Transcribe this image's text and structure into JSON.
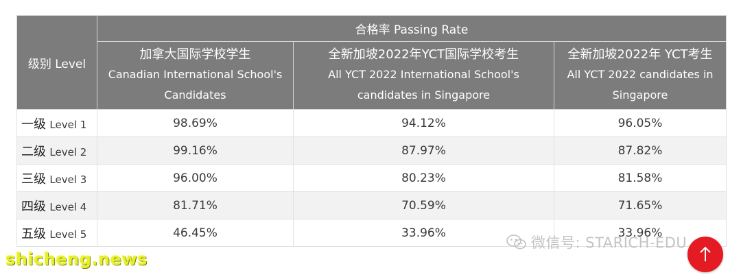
{
  "table": {
    "group_header": "合格率 Passing Rate",
    "level_header": "级别 Level",
    "columns": [
      {
        "zh": "加拿大国际学校学生",
        "en_line1": "Canadian International School's",
        "en_line2": "Candidates"
      },
      {
        "zh": "全新加坡2022年YCT国际学校考生",
        "en_line1": "All YCT 2022 International School's",
        "en_line2": "candidates in Singapore"
      },
      {
        "zh": "全新加坡2022年 YCT考生",
        "en_line1": "All YCT 2022 candidates in",
        "en_line2": "Singapore"
      }
    ],
    "rows": [
      {
        "level_zh": "一级",
        "level_en": "Level 1",
        "values": [
          "98.69%",
          "94.12%",
          "96.05%"
        ]
      },
      {
        "level_zh": "二级",
        "level_en": "Level 2",
        "values": [
          "99.16%",
          "87.97%",
          "87.82%"
        ]
      },
      {
        "level_zh": "三级",
        "level_en": "Level 3",
        "values": [
          "96.00%",
          "80.23%",
          "81.58%"
        ]
      },
      {
        "level_zh": "四级",
        "level_en": "Level 4",
        "values": [
          "81.71%",
          "70.59%",
          "71.65%"
        ]
      },
      {
        "level_zh": "五级",
        "level_en": "Level 5",
        "values": [
          "46.45%",
          "33.96%",
          "33.96%"
        ]
      }
    ]
  },
  "watermark": {
    "icon": "wechat-icon",
    "text": "微信号: STARICH-EDU"
  },
  "site_watermark": "shicheng.news",
  "scroll_top": {
    "icon": "arrow-up-icon",
    "color": "#e41b23"
  }
}
